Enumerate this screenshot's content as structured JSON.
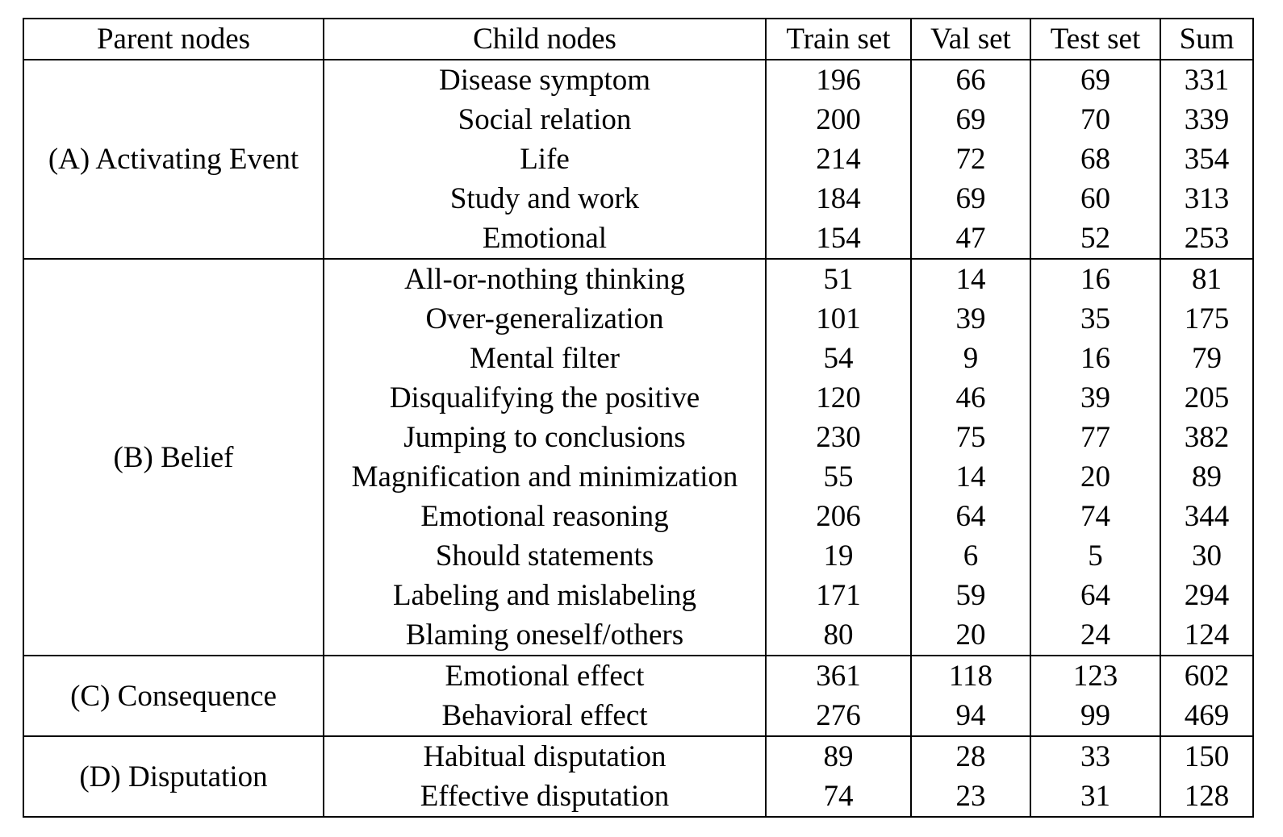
{
  "columns": [
    "Parent nodes",
    "Child nodes",
    "Train set",
    "Val set",
    "Test set",
    "Sum"
  ],
  "groups": [
    {
      "parent": "(A) Activating Event",
      "rows": [
        {
          "child": "Disease symptom",
          "train": "196",
          "val": "66",
          "test": "69",
          "sum": "331"
        },
        {
          "child": "Social relation",
          "train": "200",
          "val": "69",
          "test": "70",
          "sum": "339"
        },
        {
          "child": "Life",
          "train": "214",
          "val": "72",
          "test": "68",
          "sum": "354"
        },
        {
          "child": "Study and work",
          "train": "184",
          "val": "69",
          "test": "60",
          "sum": "313"
        },
        {
          "child": "Emotional",
          "train": "154",
          "val": "47",
          "test": "52",
          "sum": "253"
        }
      ]
    },
    {
      "parent": "(B) Belief",
      "rows": [
        {
          "child": "All-or-nothing thinking",
          "train": "51",
          "val": "14",
          "test": "16",
          "sum": "81"
        },
        {
          "child": "Over-generalization",
          "train": "101",
          "val": "39",
          "test": "35",
          "sum": "175"
        },
        {
          "child": "Mental filter",
          "train": "54",
          "val": "9",
          "test": "16",
          "sum": "79"
        },
        {
          "child": "Disqualifying the positive",
          "train": "120",
          "val": "46",
          "test": "39",
          "sum": "205"
        },
        {
          "child": "Jumping to conclusions",
          "train": "230",
          "val": "75",
          "test": "77",
          "sum": "382"
        },
        {
          "child": "Magnification and minimization",
          "train": "55",
          "val": "14",
          "test": "20",
          "sum": "89"
        },
        {
          "child": "Emotional reasoning",
          "train": "206",
          "val": "64",
          "test": "74",
          "sum": "344"
        },
        {
          "child": "Should statements",
          "train": "19",
          "val": "6",
          "test": "5",
          "sum": "30"
        },
        {
          "child": "Labeling and mislabeling",
          "train": "171",
          "val": "59",
          "test": "64",
          "sum": "294"
        },
        {
          "child": "Blaming oneself/others",
          "train": "80",
          "val": "20",
          "test": "24",
          "sum": "124"
        }
      ]
    },
    {
      "parent": "(C) Consequence",
      "rows": [
        {
          "child": "Emotional effect",
          "train": "361",
          "val": "118",
          "test": "123",
          "sum": "602"
        },
        {
          "child": "Behavioral effect",
          "train": "276",
          "val": "94",
          "test": "99",
          "sum": "469"
        }
      ]
    },
    {
      "parent": "(D) Disputation",
      "rows": [
        {
          "child": "Habitual disputation",
          "train": "89",
          "val": "28",
          "test": "33",
          "sum": "150"
        },
        {
          "child": "Effective disputation",
          "train": "74",
          "val": "23",
          "test": "31",
          "sum": "128"
        }
      ]
    }
  ]
}
